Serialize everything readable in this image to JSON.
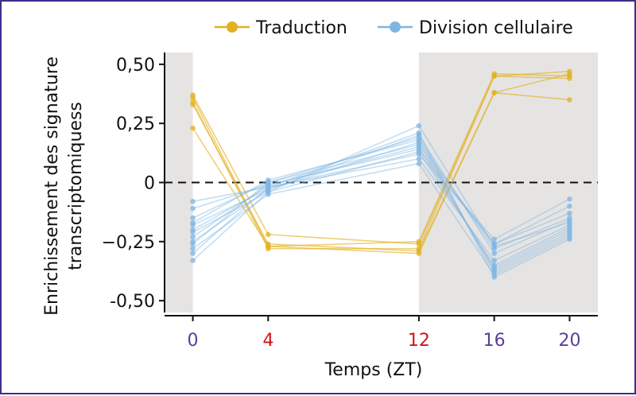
{
  "colors": {
    "frame": "#3b2f8f",
    "translation": "#e2b11f",
    "cell_division": "#7fb5e3",
    "night_shading": "#e6e4e3",
    "tick_light_phase": "#5b3e9a",
    "tick_dark_phase": "#d0141e"
  },
  "chart_data": {
    "type": "line",
    "title": "",
    "xlabel": "Temps (ZT)",
    "ylabel_lines": [
      "Enrichissement des signature",
      "transcriptomiquess"
    ],
    "x": [
      0,
      4,
      12,
      16,
      20
    ],
    "x_tick_labels": [
      "0",
      "4",
      "12",
      "16",
      "20"
    ],
    "x_tick_colors": [
      "#5b3e9a",
      "#d0141e",
      "#d0141e",
      "#5b3e9a",
      "#5b3e9a"
    ],
    "xlim": [
      -1.5,
      21.5
    ],
    "ylim": [
      -0.55,
      0.55
    ],
    "y_ticks": [
      0.5,
      0.25,
      0,
      -0.25,
      -0.5
    ],
    "y_tick_labels": [
      "0,50",
      "0,25",
      "0",
      "−0,25",
      "-0,50"
    ],
    "zero_line": "dashed",
    "shaded_x_ranges": [
      [
        -1.5,
        0
      ],
      [
        12,
        21.5
      ]
    ],
    "legend": {
      "placement": "top"
    },
    "series": [
      {
        "name": "Traduction",
        "color": "#e2b11f",
        "lines": [
          [
            0.37,
            -0.22,
            -0.26,
            0.45,
            0.47
          ],
          [
            0.36,
            -0.27,
            -0.25,
            0.46,
            0.45
          ],
          [
            0.34,
            -0.28,
            -0.28,
            0.45,
            0.44
          ],
          [
            0.33,
            -0.26,
            -0.29,
            0.38,
            0.35
          ],
          [
            0.23,
            -0.27,
            -0.3,
            0.38,
            0.46
          ]
        ]
      },
      {
        "name": "Division cellulaire",
        "color": "#7fb5e3",
        "lines": [
          [
            -0.08,
            -0.02,
            0.12,
            -0.24,
            -0.07
          ],
          [
            -0.11,
            -0.01,
            0.14,
            -0.26,
            -0.1
          ],
          [
            -0.15,
            0.0,
            0.16,
            -0.26,
            -0.13
          ],
          [
            -0.17,
            0.01,
            0.18,
            -0.28,
            -0.15
          ],
          [
            -0.18,
            -0.03,
            0.2,
            -0.3,
            -0.16
          ],
          [
            -0.2,
            -0.02,
            0.1,
            -0.33,
            -0.18
          ],
          [
            -0.21,
            -0.04,
            0.13,
            -0.35,
            -0.19
          ],
          [
            -0.23,
            -0.01,
            0.15,
            -0.36,
            -0.2
          ],
          [
            -0.25,
            -0.03,
            0.17,
            -0.37,
            -0.21
          ],
          [
            -0.26,
            0.0,
            0.19,
            -0.38,
            -0.22
          ],
          [
            -0.28,
            -0.05,
            0.08,
            -0.39,
            -0.23
          ],
          [
            -0.3,
            -0.02,
            0.21,
            -0.4,
            -0.24
          ],
          [
            -0.33,
            -0.04,
            0.24,
            -0.27,
            -0.17
          ]
        ]
      }
    ]
  }
}
